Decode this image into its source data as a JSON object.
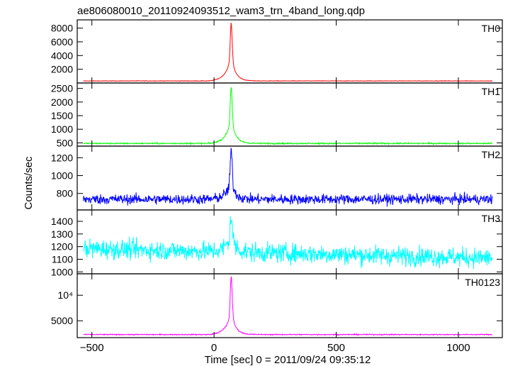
{
  "chart_data": {
    "type": "line",
    "title": "ae806080010_20110924093512_wam3_trn_4band_long.qdp",
    "xlabel": "Time [sec] 0 = 2011/09/24 09:35:12",
    "ylabel": "Counts/sec",
    "xlim": [
      -560,
      1180
    ],
    "x_ticks": [
      -500,
      0,
      500,
      1000
    ],
    "panels": [
      {
        "name": "TH0",
        "color": "#ff0000",
        "ylim": [
          0,
          9200
        ],
        "y_ticks": [
          {
            "v": 2000,
            "label": "2000"
          },
          {
            "v": 4000,
            "label": "4000"
          },
          {
            "v": 6000,
            "label": "6000"
          },
          {
            "v": 8000,
            "label": "8000"
          }
        ],
        "baseline": 300,
        "noise": 25,
        "peak_time": 70,
        "peak_value": 8800,
        "shoulder_value": 3900
      },
      {
        "name": "TH1",
        "color": "#00ff00",
        "ylim": [
          380,
          2700
        ],
        "y_ticks": [
          {
            "v": 500,
            "label": "500"
          },
          {
            "v": 1000,
            "label": "1000"
          },
          {
            "v": 1500,
            "label": "1500"
          },
          {
            "v": 2000,
            "label": "2000"
          },
          {
            "v": 2500,
            "label": "2500"
          }
        ],
        "baseline": 480,
        "noise": 18,
        "peak_time": 70,
        "peak_value": 2600,
        "shoulder_value": 1350
      },
      {
        "name": "TH2",
        "color": "#0000ff",
        "ylim": [
          615,
          1330
        ],
        "y_ticks": [
          {
            "v": 800,
            "label": "800"
          },
          {
            "v": 1000,
            "label": "1000"
          },
          {
            "v": 1200,
            "label": "1200"
          }
        ],
        "baseline": 735,
        "noise": 40,
        "peak_time": 70,
        "peak_value": 1290,
        "shoulder_value": 930
      },
      {
        "name": "TH3",
        "color": "#00ffff",
        "ylim": [
          985,
          1490
        ],
        "y_ticks": [
          {
            "v": 1000,
            "label": "1000"
          },
          {
            "v": 1100,
            "label": "1100"
          },
          {
            "v": 1200,
            "label": "1200"
          },
          {
            "v": 1300,
            "label": "1300"
          },
          {
            "v": 1400,
            "label": "1400"
          }
        ],
        "baseline_start": 1185,
        "baseline_end": 1110,
        "noise": 55,
        "peak_time": 70,
        "peak_value": 1460,
        "shoulder_value": 1290
      },
      {
        "name": "TH0123",
        "color": "#ff00ff",
        "ylim": [
          1700,
          14200
        ],
        "y_ticks": [
          {
            "v": 5000,
            "label": "5000"
          },
          {
            "v": 10000,
            "label": "10⁴"
          }
        ],
        "baseline": 2300,
        "noise": 70,
        "peak_time": 70,
        "peak_value": 13900,
        "shoulder_value": 6700
      }
    ]
  }
}
